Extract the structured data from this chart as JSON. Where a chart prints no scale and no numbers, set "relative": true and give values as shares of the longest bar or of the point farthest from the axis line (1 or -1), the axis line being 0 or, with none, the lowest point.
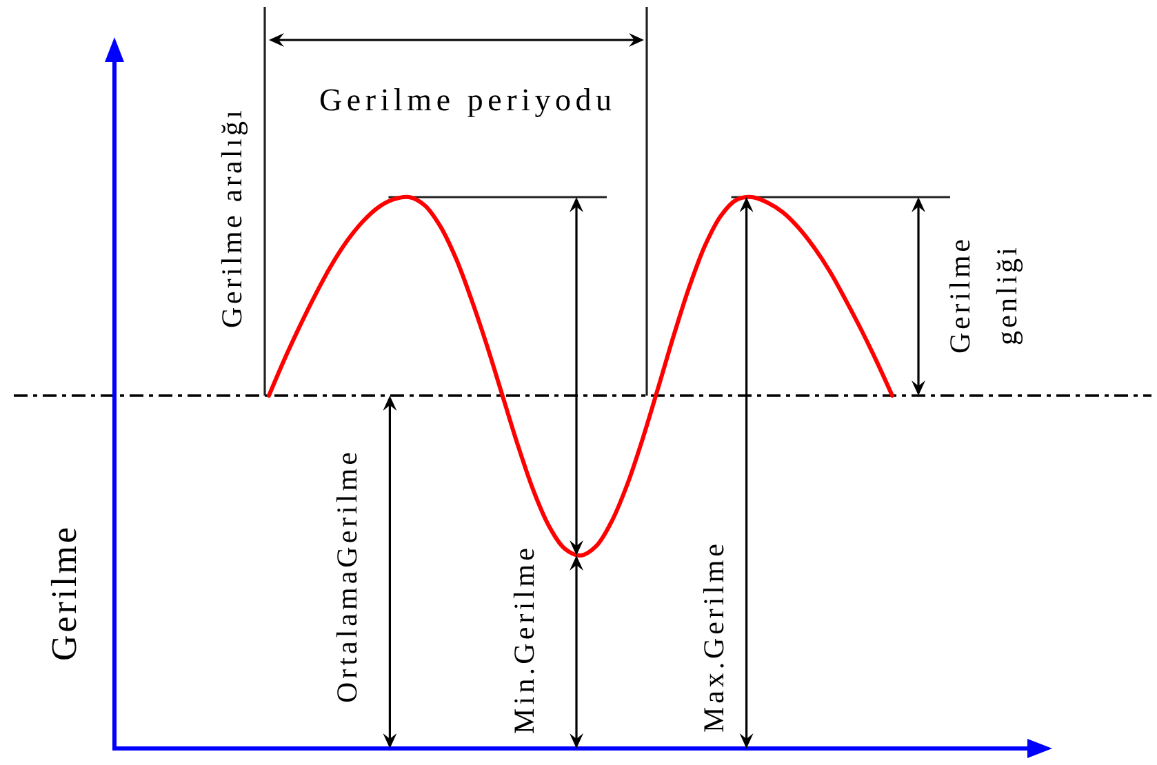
{
  "chart_data": {
    "type": "line",
    "relative": true,
    "ylabel": "Gerilme",
    "categories": [
      null,
      null,
      null,
      null,
      null,
      null,
      null,
      null,
      null,
      null,
      null,
      null,
      null,
      null,
      null,
      null,
      null,
      null,
      null,
      null,
      null,
      null,
      null,
      null,
      null,
      null,
      null,
      null,
      null,
      null,
      null,
      null,
      null,
      null,
      null,
      null,
      null,
      null,
      null,
      null,
      null
    ],
    "series": [
      {
        "color": "#ff0000",
        "values": [
          0.64,
          0.706,
          0.767,
          0.824,
          0.876,
          0.92,
          0.955,
          0.981,
          0.996,
          1.0,
          0.985,
          0.947,
          0.889,
          0.814,
          0.73,
          0.639,
          0.548,
          0.466,
          0.402,
          0.362,
          0.35,
          0.367,
          0.412,
          0.479,
          0.563,
          0.656,
          0.751,
          0.839,
          0.913,
          0.966,
          0.995,
          1.0,
          0.99,
          0.972,
          0.944,
          0.908,
          0.865,
          0.814,
          0.76,
          0.702,
          0.64
        ]
      }
    ],
    "ref_lines": [
      {
        "axis": "y",
        "value": 0.64,
        "color": "#000000",
        "line_style": "dashdot"
      }
    ],
    "annotations": [
      "Gerilme periyodu",
      "Gerilme aralığı",
      "Gerilme genliği",
      "OrtalamaGerilme",
      "Min.Gerilme",
      "Max.Gerilme"
    ]
  }
}
